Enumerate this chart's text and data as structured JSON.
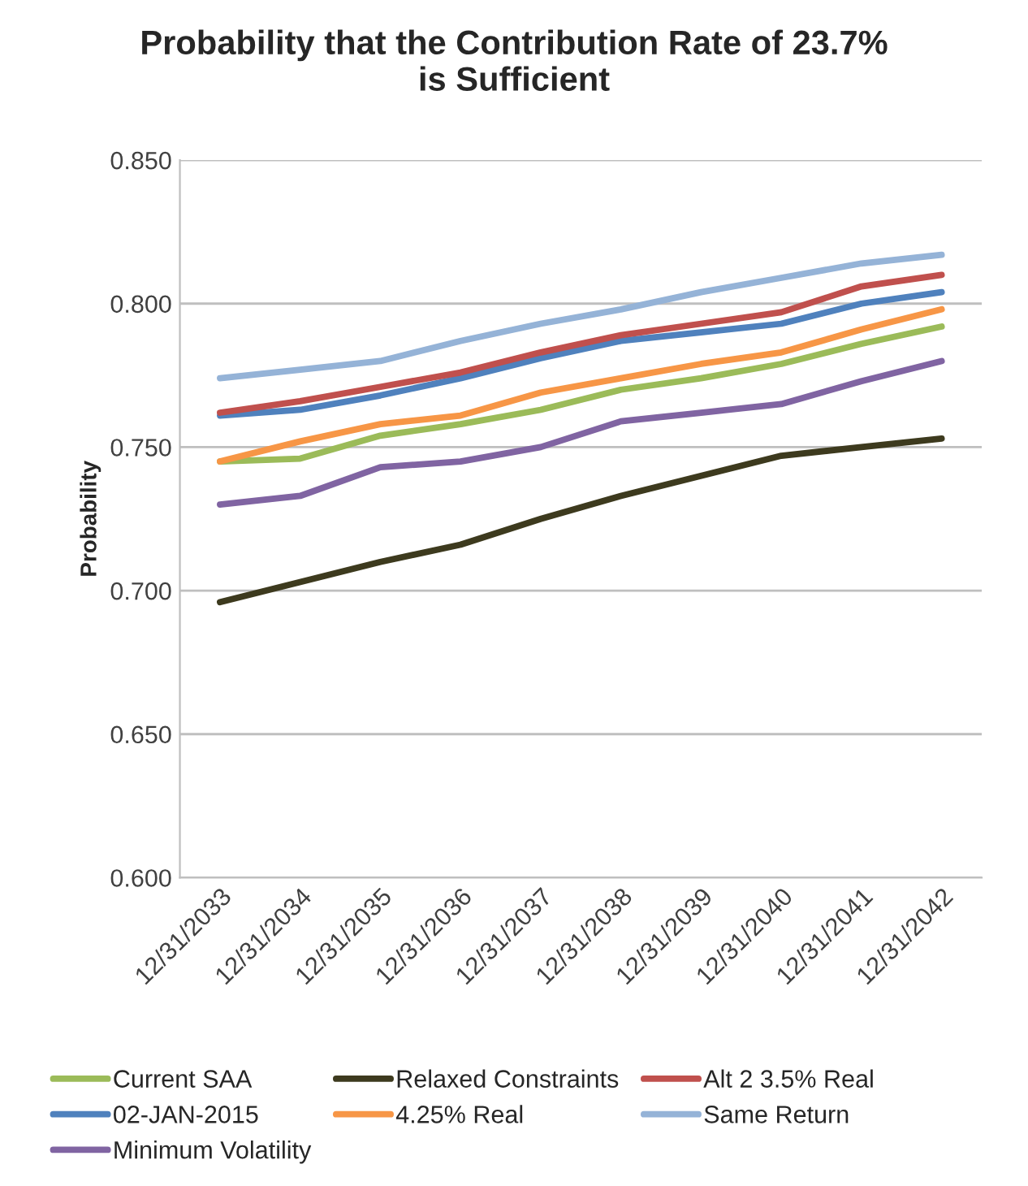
{
  "chart_data": {
    "type": "line",
    "title": "Probability that the Contribution Rate of 23.7%\nis Sufficient",
    "ylabel": "Probability",
    "categories": [
      "12/31/2033",
      "12/31/2034",
      "12/31/2035",
      "12/31/2036",
      "12/31/2037",
      "12/31/2038",
      "12/31/2039",
      "12/31/2040",
      "12/31/2041",
      "12/31/2042"
    ],
    "series": [
      {
        "name": "Current SAA",
        "color": "#9bbb59",
        "values": [
          0.745,
          0.746,
          0.754,
          0.758,
          0.763,
          0.77,
          0.774,
          0.779,
          0.786,
          0.792
        ]
      },
      {
        "name": "02-JAN-2015",
        "color": "#4f81bd",
        "values": [
          0.761,
          0.763,
          0.768,
          0.774,
          0.781,
          0.787,
          0.79,
          0.793,
          0.8,
          0.804
        ]
      },
      {
        "name": "Minimum Volatility",
        "color": "#8064a2",
        "values": [
          0.73,
          0.733,
          0.743,
          0.745,
          0.75,
          0.759,
          0.762,
          0.765,
          0.773,
          0.78
        ]
      },
      {
        "name": "Relaxed Constraints",
        "color": "#3d3a1e",
        "values": [
          0.696,
          0.703,
          0.71,
          0.716,
          0.725,
          0.733,
          0.74,
          0.747,
          0.75,
          0.753
        ]
      },
      {
        "name": "4.25% Real",
        "color": "#f79646",
        "values": [
          0.745,
          0.752,
          0.758,
          0.761,
          0.769,
          0.774,
          0.779,
          0.783,
          0.791,
          0.798
        ]
      },
      {
        "name": "Alt 2 3.5% Real",
        "color": "#c0504d",
        "values": [
          0.762,
          0.766,
          0.771,
          0.776,
          0.783,
          0.789,
          0.793,
          0.797,
          0.806,
          0.81
        ]
      },
      {
        "name": "Same Return",
        "color": "#95b3d7",
        "values": [
          0.774,
          0.777,
          0.78,
          0.787,
          0.793,
          0.798,
          0.804,
          0.809,
          0.814,
          0.817
        ]
      }
    ],
    "ylim": [
      0.6,
      0.85
    ],
    "yticks": [
      {
        "value": 0.6,
        "label": "0.600"
      },
      {
        "value": 0.65,
        "label": "0.650"
      },
      {
        "value": 0.7,
        "label": "0.700"
      },
      {
        "value": 0.75,
        "label": "0.750"
      },
      {
        "value": 0.8,
        "label": "0.800"
      },
      {
        "value": 0.85,
        "label": "0.850"
      }
    ],
    "grid": "y",
    "legend": "bottom",
    "marker": "none",
    "line_style": "solid"
  }
}
